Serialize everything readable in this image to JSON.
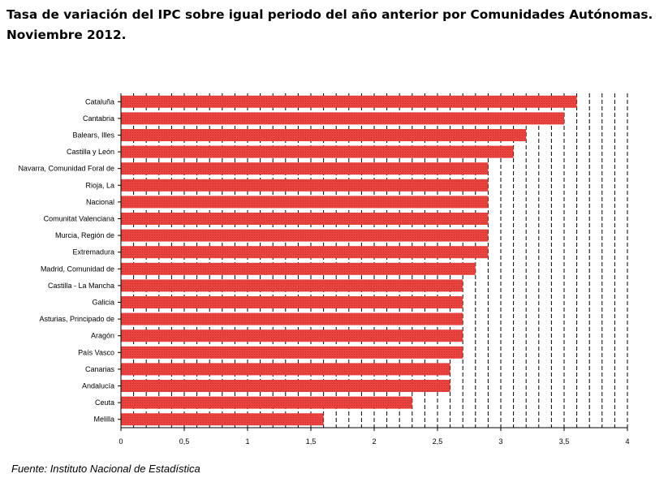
{
  "chart_data": {
    "type": "bar",
    "orientation": "horizontal",
    "title": "Tasa de variación del IPC sobre igual periodo del año anterior por Comunidades Autónomas. Noviembre 2012.",
    "categories": [
      "Cataluña",
      "Cantabria",
      "Balears, Illes",
      "Castilla y León",
      "Navarra, Comunidad Foral de",
      "Rioja, La",
      "Nacional",
      "Comunitat Valenciana",
      "Murcia, Región de",
      "Extremadura",
      "Madrid, Comunidad de",
      "Castilla - La Mancha",
      "Galicia",
      "Asturias, Principado de",
      "Aragón",
      "País Vasco",
      "Canarias",
      "Andalucía",
      "Ceuta",
      "Melilla"
    ],
    "values": [
      3.6,
      3.5,
      3.2,
      3.1,
      2.9,
      2.9,
      2.9,
      2.9,
      2.9,
      2.9,
      2.8,
      2.7,
      2.7,
      2.7,
      2.7,
      2.7,
      2.6,
      2.6,
      2.3,
      1.6
    ],
    "xlim": [
      0,
      4
    ],
    "xticks": [
      {
        "value": 0,
        "label": "0"
      },
      {
        "value": 0.5,
        "label": "0,5"
      },
      {
        "value": 1,
        "label": "1"
      },
      {
        "value": 1.5,
        "label": "1,5"
      },
      {
        "value": 2,
        "label": "2"
      },
      {
        "value": 2.5,
        "label": "2,5"
      },
      {
        "value": 3,
        "label": "3"
      },
      {
        "value": 3.5,
        "label": "3,5"
      },
      {
        "value": 4,
        "label": "4"
      }
    ],
    "grid_step": 0.1,
    "grid_style": "dashed vertical",
    "bar_color": "#e8433f",
    "xlabel": "",
    "ylabel": ""
  },
  "source": "Fuente: Instituto Nacional de Estadística"
}
